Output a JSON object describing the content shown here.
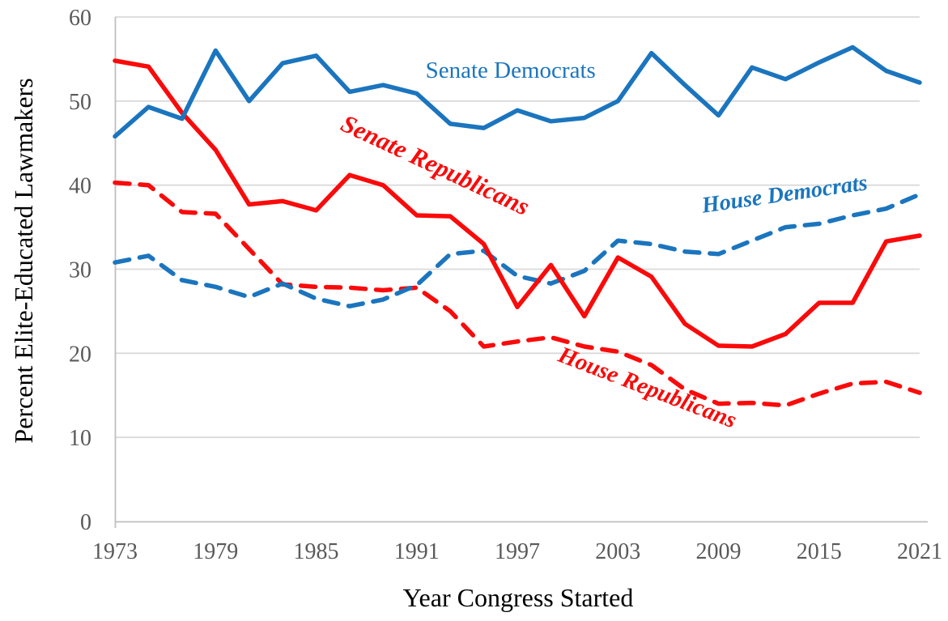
{
  "chart_data": {
    "type": "line",
    "title": "",
    "xlabel": "Year Congress Started",
    "ylabel": "Percent Elite-Educated Lawmakers",
    "xlim": [
      1973,
      2021
    ],
    "ylim": [
      0,
      60
    ],
    "grid": "horizontal",
    "legend": "inline-labels-on-chart",
    "x": [
      1973,
      1975,
      1977,
      1979,
      1981,
      1983,
      1985,
      1987,
      1989,
      1991,
      1993,
      1995,
      1997,
      1999,
      2001,
      2003,
      2005,
      2007,
      2009,
      2011,
      2013,
      2015,
      2017,
      2019,
      2021
    ],
    "x_ticks": [
      "1973",
      "1979",
      "1985",
      "1991",
      "1997",
      "2003",
      "2009",
      "2015",
      "2021"
    ],
    "x_tick_years": [
      1973,
      1979,
      1985,
      1991,
      1997,
      2003,
      2009,
      2015,
      2021
    ],
    "y_ticks": [
      "0",
      "10",
      "20",
      "30",
      "40",
      "50",
      "60"
    ],
    "y_tick_values": [
      0,
      10,
      20,
      30,
      40,
      50,
      60
    ],
    "series": [
      {
        "name": "House Republicans",
        "chamber": "House",
        "party": "Republican",
        "style": "dashed",
        "color": "#FA0A0A",
        "values": [
          40.3,
          40.0,
          36.8,
          36.6,
          32.4,
          28.2,
          27.9,
          27.8,
          27.5,
          27.8,
          25.0,
          20.8,
          21.4,
          21.9,
          20.8,
          20.2,
          18.6,
          15.7,
          14.0,
          14.1,
          13.8,
          15.2,
          16.4,
          16.6,
          15.3
        ]
      },
      {
        "name": "House Democrats",
        "chamber": "House",
        "party": "Democratic",
        "style": "dashed",
        "color": "#1B75BE",
        "values": [
          30.8,
          31.6,
          28.7,
          27.9,
          26.7,
          28.3,
          26.5,
          25.6,
          26.4,
          28.1,
          31.8,
          32.2,
          29.2,
          28.3,
          29.8,
          33.4,
          33.0,
          32.1,
          31.8,
          33.4,
          35.0,
          35.4,
          36.4,
          37.2,
          38.9
        ]
      },
      {
        "name": "Senate Republicans",
        "chamber": "Senate",
        "party": "Republican",
        "style": "solid",
        "color": "#FA0A0A",
        "values": [
          54.8,
          54.1,
          48.6,
          44.2,
          37.7,
          38.1,
          37.0,
          41.2,
          40.0,
          36.4,
          36.3,
          33.0,
          25.5,
          30.5,
          24.4,
          31.4,
          29.1,
          23.5,
          20.9,
          20.8,
          22.3,
          26.0,
          26.0,
          33.3,
          34.0
        ]
      },
      {
        "name": "Senate Democrats",
        "chamber": "Senate",
        "party": "Democratic",
        "style": "solid",
        "color": "#1B75BE",
        "values": [
          45.8,
          49.3,
          47.9,
          56.0,
          50.0,
          54.5,
          55.4,
          51.1,
          51.9,
          50.9,
          47.3,
          46.8,
          48.9,
          47.6,
          48.0,
          50.0,
          55.7,
          51.9,
          48.3,
          54.0,
          52.6,
          54.6,
          56.4,
          53.6,
          52.2
        ]
      }
    ],
    "annotations": [
      {
        "text": "Senate Democrats",
        "x": 1996.6,
        "y": 52.8,
        "rotation": 0,
        "color": "#1B75BE",
        "bold": false,
        "italic": false,
        "font_size": 29
      },
      {
        "text": "Senate Republicans",
        "x": 1991.9,
        "y": 41.5,
        "rotation": 25,
        "color": "#FA0A0A",
        "bold": true,
        "italic": true,
        "font_size": 31
      },
      {
        "text": "House Democrats",
        "x": 2013.0,
        "y": 38.1,
        "rotation": -8,
        "color": "#1B75BE",
        "bold": true,
        "italic": true,
        "font_size": 28
      },
      {
        "text": "House Republicans",
        "x": 2004.6,
        "y": 15.1,
        "rotation": 21,
        "color": "#FA0A0A",
        "bold": true,
        "italic": true,
        "font_size": 29
      }
    ],
    "colors": {
      "background": "#FFFFFF",
      "gridline": "#DADADA",
      "axis_line": "#BFBFBF",
      "tick_label": "#595959",
      "axis_title": "#000000",
      "democrat_blue": "#1B75BE",
      "republican_red": "#FA0A0A"
    }
  }
}
